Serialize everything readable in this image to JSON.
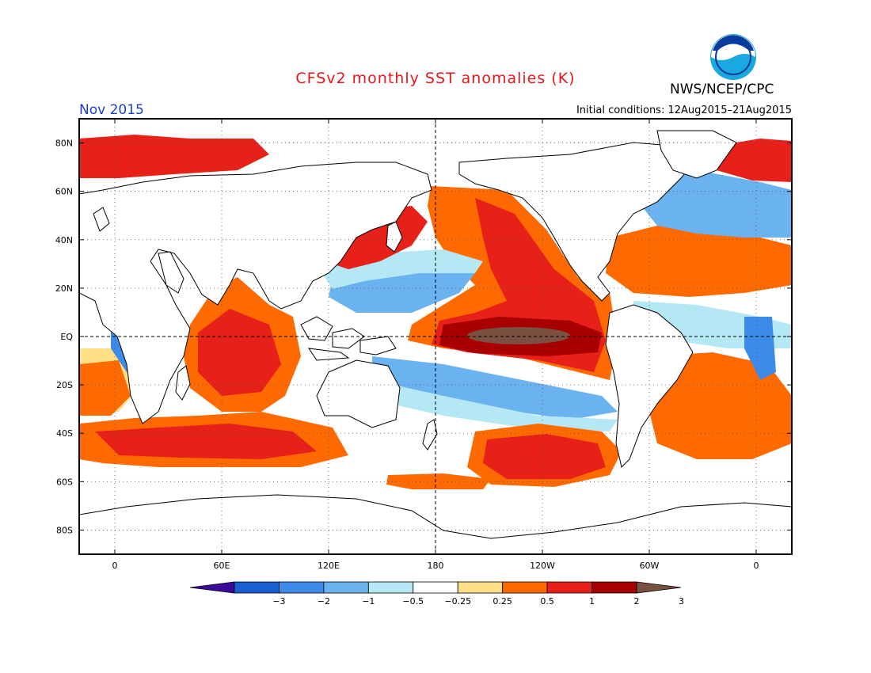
{
  "title": "CFSv2 monthly SST anomalies (K)",
  "agency": "NWS/NCEP/CPC",
  "logo_text": "NOAA",
  "valid_month": "Nov 2015",
  "initial_conditions": "Initial conditions: 12Aug2015–21Aug2015",
  "map": {
    "projection": "equirectangular",
    "lon_range": [
      -20,
      380
    ],
    "lat_range": [
      -90,
      90
    ],
    "lat_ticks": [
      {
        "lat": 80,
        "label": "80N"
      },
      {
        "lat": 60,
        "label": "60N"
      },
      {
        "lat": 40,
        "label": "40N"
      },
      {
        "lat": 20,
        "label": "20N"
      },
      {
        "lat": 0,
        "label": "EQ"
      },
      {
        "lat": -20,
        "label": "20S"
      },
      {
        "lat": -40,
        "label": "40S"
      },
      {
        "lat": -60,
        "label": "60S"
      },
      {
        "lat": -80,
        "label": "80S"
      }
    ],
    "lon_ticks": [
      {
        "lon": 0,
        "label": "0"
      },
      {
        "lon": 60,
        "label": "60E"
      },
      {
        "lon": 120,
        "label": "120E"
      },
      {
        "lon": 180,
        "label": "180"
      },
      {
        "lon": 240,
        "label": "120W"
      },
      {
        "lon": 300,
        "label": "60W"
      },
      {
        "lon": 360,
        "label": "0"
      }
    ],
    "dashed_lines": {
      "equator": true,
      "dateline": true
    }
  },
  "colorbar": {
    "labels": [
      "−3",
      "−2",
      "−1",
      "−0.5",
      "−0.25",
      "0.25",
      "0.5",
      "1",
      "2",
      "3"
    ],
    "colors": [
      "#3a0a9a",
      "#1a5fd0",
      "#3c8be8",
      "#6ab2f0",
      "#b5e8f5",
      "#ffffff",
      "#ffe089",
      "#ff6a00",
      "#e8201a",
      "#a80000",
      "#7a5040"
    ]
  },
  "anomaly_colors": {
    "strong_negative": "#3c8be8",
    "weak_negative": "#6ab2f0",
    "very_weak_negative": "#b5e8f5",
    "weak_positive": "#ffe089",
    "moderate_positive": "#ff6a00",
    "strong_positive": "#e8201a",
    "very_strong_positive": "#a80000",
    "extreme_positive": "#7a5040"
  }
}
